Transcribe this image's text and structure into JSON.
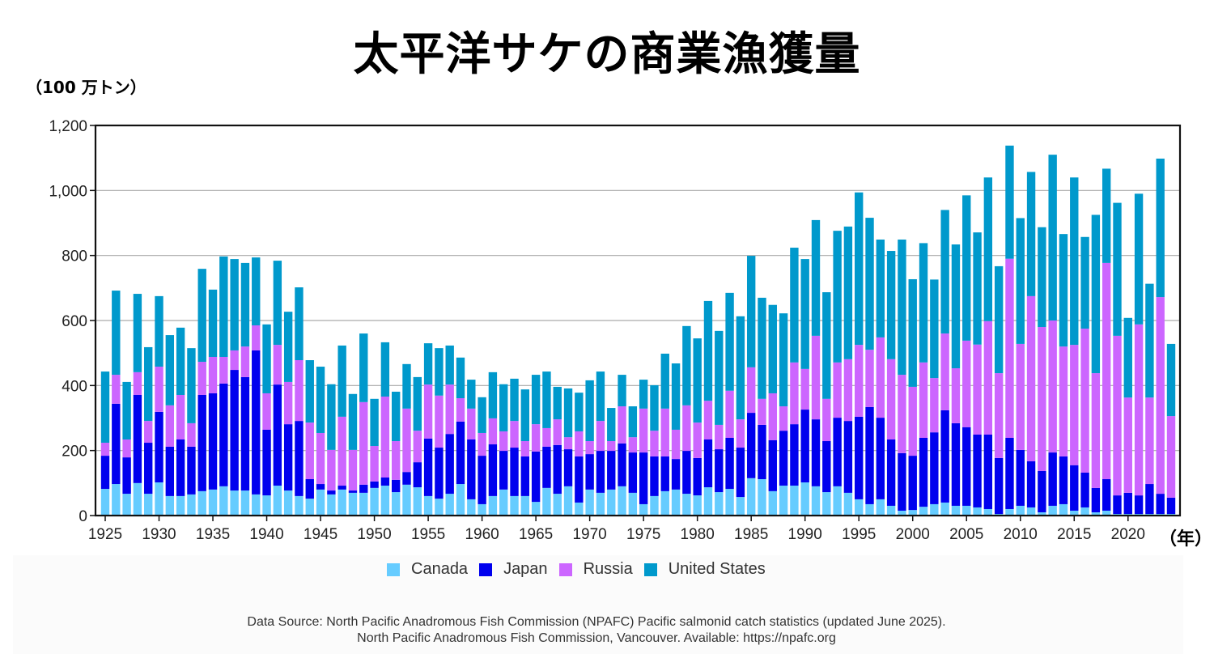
{
  "header": {
    "title": "太平洋サケの商業漁獲量",
    "y_unit": "（100 万トン）",
    "x_unit": "（年）"
  },
  "legend": {
    "items": [
      {
        "name": "Canada",
        "color": "#66ccff"
      },
      {
        "name": "Japan",
        "color": "#0000ee"
      },
      {
        "name": "Russia",
        "color": "#cc66ff"
      },
      {
        "name": "United States",
        "color": "#0099cc"
      }
    ]
  },
  "source": {
    "line1": "Data Source: North Pacific Anadromous Fish Commission (NPAFC) Pacific salmonid catch statistics (updated June 2025).",
    "line2": "North Pacific Anadromous Fish Commission, Vancouver. Available: https://npafc.org"
  },
  "chart_data": {
    "type": "bar",
    "stacked": true,
    "title": "太平洋サケの商業漁獲量",
    "xlabel": "（年）",
    "ylabel": "（100 万トン）",
    "ylim": [
      0,
      1200
    ],
    "yticks": [
      0,
      200,
      400,
      600,
      800,
      1000,
      1200
    ],
    "ytick_labels": [
      "0",
      "200",
      "400",
      "600",
      "800",
      "1,000",
      "1,200"
    ],
    "xticks": [
      1925,
      1930,
      1935,
      1940,
      1945,
      1950,
      1955,
      1960,
      1965,
      1970,
      1975,
      1980,
      1985,
      1990,
      1995,
      2000,
      2005,
      2010,
      2015,
      2020
    ],
    "grid": true,
    "legend_position": "bottom",
    "categories": [
      1925,
      1926,
      1927,
      1928,
      1929,
      1930,
      1931,
      1932,
      1933,
      1934,
      1935,
      1936,
      1937,
      1938,
      1939,
      1940,
      1941,
      1942,
      1943,
      1944,
      1945,
      1946,
      1947,
      1948,
      1949,
      1950,
      1951,
      1952,
      1953,
      1954,
      1955,
      1956,
      1957,
      1958,
      1959,
      1960,
      1961,
      1962,
      1963,
      1964,
      1965,
      1966,
      1967,
      1968,
      1969,
      1970,
      1971,
      1972,
      1973,
      1974,
      1975,
      1976,
      1977,
      1978,
      1979,
      1980,
      1981,
      1982,
      1983,
      1984,
      1985,
      1986,
      1987,
      1988,
      1989,
      1990,
      1991,
      1992,
      1993,
      1994,
      1995,
      1996,
      1997,
      1998,
      1999,
      2000,
      2001,
      2002,
      2003,
      2004,
      2005,
      2006,
      2007,
      2008,
      2009,
      2010,
      2011,
      2012,
      2013,
      2014,
      2015,
      2016,
      2017,
      2018,
      2019,
      2020,
      2021,
      2022,
      2023,
      2024
    ],
    "series": [
      {
        "name": "Canada",
        "color": "#66ccff",
        "values": [
          82,
          97,
          67,
          100,
          67,
          102,
          60,
          60,
          65,
          75,
          80,
          90,
          77,
          77,
          65,
          62,
          92,
          77,
          60,
          52,
          80,
          65,
          80,
          70,
          70,
          85,
          92,
          72,
          95,
          87,
          60,
          52,
          67,
          97,
          50,
          35,
          60,
          80,
          60,
          60,
          42,
          85,
          67,
          90,
          40,
          80,
          70,
          80,
          90,
          70,
          35,
          60,
          75,
          80,
          67,
          62,
          87,
          72,
          82,
          57,
          115,
          112,
          75,
          92,
          92,
          102,
          90,
          72,
          90,
          70,
          50,
          35,
          50,
          30,
          15,
          17,
          27,
          35,
          40,
          30,
          30,
          25,
          20,
          5,
          20,
          30,
          25,
          10,
          30,
          35,
          15,
          25,
          10,
          15,
          5,
          5,
          5,
          5,
          5,
          5
        ]
      },
      {
        "name": "Japan",
        "color": "#0000ee",
        "values": [
          102,
          247,
          112,
          271,
          157,
          217,
          152,
          174,
          147,
          296,
          296,
          316,
          371,
          349,
          443,
          202,
          311,
          204,
          231,
          60,
          17,
          12,
          12,
          7,
          25,
          20,
          25,
          38,
          39,
          77,
          177,
          157,
          184,
          192,
          184,
          149,
          159,
          119,
          149,
          122,
          155,
          127,
          150,
          114,
          142,
          109,
          129,
          119,
          132,
          124,
          159,
          122,
          107,
          94,
          132,
          115,
          147,
          132,
          157,
          152,
          201,
          167,
          157,
          169,
          189,
          224,
          206,
          157,
          211,
          221,
          254,
          299,
          251,
          204,
          177,
          167,
          212,
          221,
          284,
          254,
          242,
          224,
          229,
          172,
          219,
          172,
          142,
          127,
          164,
          147,
          140,
          107,
          75,
          97,
          57,
          65,
          57,
          92,
          62,
          50
        ]
      },
      {
        "name": "Russia",
        "color": "#cc66ff",
        "values": [
          40,
          89,
          55,
          70,
          67,
          139,
          127,
          137,
          72,
          102,
          112,
          82,
          60,
          94,
          77,
          112,
          122,
          130,
          187,
          174,
          157,
          125,
          212,
          125,
          254,
          109,
          249,
          119,
          195,
          97,
          166,
          160,
          152,
          72,
          95,
          70,
          80,
          60,
          82,
          47,
          84,
          57,
          79,
          37,
          77,
          40,
          92,
          30,
          114,
          47,
          135,
          79,
          147,
          90,
          140,
          109,
          119,
          75,
          145,
          87,
          140,
          80,
          144,
          75,
          190,
          125,
          257,
          130,
          170,
          190,
          221,
          176,
          247,
          247,
          241,
          212,
          232,
          167,
          236,
          169,
          266,
          277,
          349,
          261,
          551,
          326,
          508,
          443,
          406,
          338,
          370,
          443,
          353,
          665,
          491,
          293,
          526,
          266,
          605,
          251
        ]
      },
      {
        "name": "United States",
        "color": "#0099cc",
        "values": [
          219,
          259,
          177,
          241,
          227,
          217,
          216,
          207,
          231,
          286,
          207,
          309,
          281,
          257,
          209,
          212,
          259,
          216,
          224,
          192,
          204,
          202,
          219,
          172,
          211,
          145,
          167,
          152,
          137,
          165,
          127,
          146,
          120,
          125,
          89,
          110,
          142,
          145,
          130,
          159,
          152,
          174,
          100,
          150,
          119,
          187,
          152,
          102,
          97,
          95,
          89,
          140,
          169,
          204,
          244,
          259,
          307,
          289,
          301,
          317,
          343,
          311,
          272,
          286,
          353,
          338,
          356,
          328,
          405,
          408,
          469,
          406,
          301,
          333,
          416,
          331,
          367,
          303,
          380,
          381,
          447,
          345,
          442,
          329,
          348,
          387,
          382,
          307,
          510,
          346,
          515,
          282,
          487,
          290,
          409,
          245,
          402,
          350,
          426,
          222
        ]
      }
    ]
  }
}
